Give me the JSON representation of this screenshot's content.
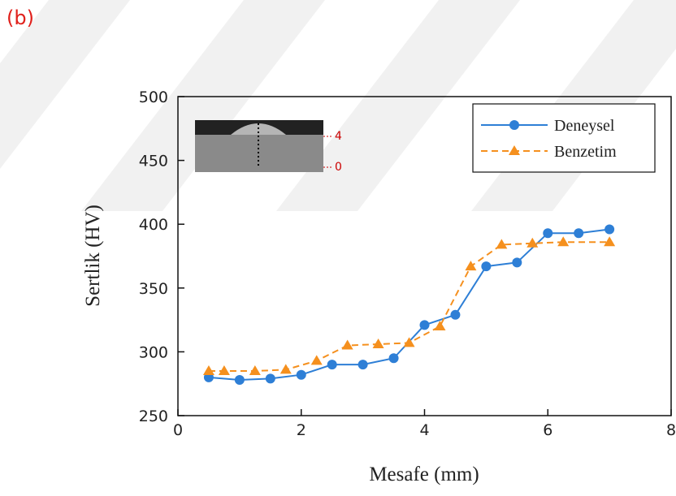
{
  "panel_label": "(b)",
  "inset": {
    "labels": [
      "4",
      "0"
    ]
  },
  "chart_data": {
    "type": "line",
    "xlabel": "Mesafe (mm)",
    "ylabel": "Sertlik (HV)",
    "xlim": [
      0,
      8
    ],
    "xticks": [
      0,
      2,
      4,
      6,
      8
    ],
    "ylim": [
      250,
      500
    ],
    "yticks": [
      250,
      300,
      350,
      400,
      450,
      500
    ],
    "legend": "upper right",
    "series": [
      {
        "name": "Deneysel",
        "color": "#2e7fd6",
        "marker": "circle",
        "dash": "solid",
        "x": [
          0.5,
          1,
          1.5,
          2,
          2.5,
          3,
          3.5,
          4,
          4.5,
          5,
          5.5,
          6,
          6.5,
          7
        ],
        "values": [
          280,
          278,
          279,
          282,
          290,
          290,
          295,
          321,
          329,
          367,
          370,
          393,
          393,
          396
        ]
      },
      {
        "name": "Benzetim",
        "color": "#f5901e",
        "marker": "triangle",
        "dash": "dashed",
        "x": [
          0.5,
          0.75,
          1.25,
          1.75,
          2.25,
          2.75,
          3.25,
          3.75,
          4.25,
          4.75,
          5.25,
          5.75,
          6.25,
          7
        ],
        "values": [
          285,
          285,
          285,
          286,
          293,
          305,
          306,
          307,
          320,
          367,
          384,
          385,
          386,
          386
        ]
      }
    ]
  }
}
